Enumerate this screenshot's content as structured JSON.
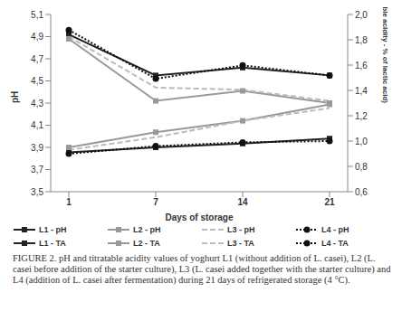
{
  "chart_data": {
    "type": "line",
    "caption": "FIGURE 2. pH and titratable acidity values of yoghurt L1 (without addition of L. casei), L2 (L. casei before addition of the starter culture), L3 (L. casei added together with the starter culture) and L4 (addition of L. casei after fermentation) during 21 days of refrigerated storage (4 °C).",
    "x_label": "Days of storage",
    "y_label": "pH",
    "y2_label": "TA (Titratable acidity - % of lactic acid)",
    "categories": [
      "1",
      "7",
      "14",
      "21"
    ],
    "ylim": [
      3.5,
      5.1
    ],
    "yticks": [
      {
        "value": 3.5,
        "label": "3,5"
      },
      {
        "value": 3.7,
        "label": "3,7"
      },
      {
        "value": 3.9,
        "label": "3,9"
      },
      {
        "value": 4.1,
        "label": "4,1"
      },
      {
        "value": 4.3,
        "label": "4,3"
      },
      {
        "value": 4.5,
        "label": "4,5"
      },
      {
        "value": 4.7,
        "label": "4,7"
      },
      {
        "value": 4.9,
        "label": "4,9"
      },
      {
        "value": 5.1,
        "label": "5,1"
      }
    ],
    "y2lim": [
      0.6,
      2.0
    ],
    "y2ticks": [
      {
        "value": 0.6,
        "label": "0,6"
      },
      {
        "value": 0.8,
        "label": "0,8"
      },
      {
        "value": 1.0,
        "label": "1,0"
      },
      {
        "value": 1.2,
        "label": "1,2"
      },
      {
        "value": 1.4,
        "label": "1,4"
      },
      {
        "value": 1.6,
        "label": "1,6"
      },
      {
        "value": 1.8,
        "label": "1,8"
      },
      {
        "value": 2.0,
        "label": "2,0"
      }
    ],
    "grid": false,
    "series": [
      {
        "name": "L1 - pH",
        "color": "#222222",
        "marker": "square",
        "line_style": "solid",
        "values": [
          4.92,
          4.55,
          4.62,
          4.55
        ]
      },
      {
        "name": "L2 - pH",
        "color": "#999999",
        "marker": "square",
        "line_style": "solid",
        "values": [
          4.88,
          4.32,
          4.41,
          4.3
        ]
      },
      {
        "name": "L3 - pH",
        "color": "#bbbbbb",
        "marker": "none",
        "line_style": "dashed",
        "values": [
          4.9,
          4.44,
          4.42,
          4.32
        ]
      },
      {
        "name": "L4 - pH",
        "color": "#111111",
        "marker": "circle",
        "line_style": "dotted",
        "values": [
          4.96,
          4.52,
          4.64,
          4.55
        ]
      },
      {
        "name": "L1 - TA",
        "color": "#222222",
        "marker": "square",
        "line_style": "solid",
        "axis": "y2",
        "values": [
          0.91,
          0.95,
          0.98,
          1.02
        ]
      },
      {
        "name": "L2 - TA",
        "color": "#999999",
        "marker": "square",
        "line_style": "solid",
        "axis": "y2",
        "values": [
          0.95,
          1.07,
          1.16,
          1.29
        ]
      },
      {
        "name": "L3 - TA",
        "color": "#bbbbbb",
        "marker": "none",
        "line_style": "dashed",
        "axis": "y2",
        "values": [
          0.93,
          1.03,
          1.16,
          1.26
        ]
      },
      {
        "name": "L4 - TA",
        "color": "#111111",
        "marker": "circle",
        "line_style": "dotted",
        "axis": "y2",
        "values": [
          0.9,
          0.96,
          0.99,
          1.0
        ]
      }
    ]
  }
}
